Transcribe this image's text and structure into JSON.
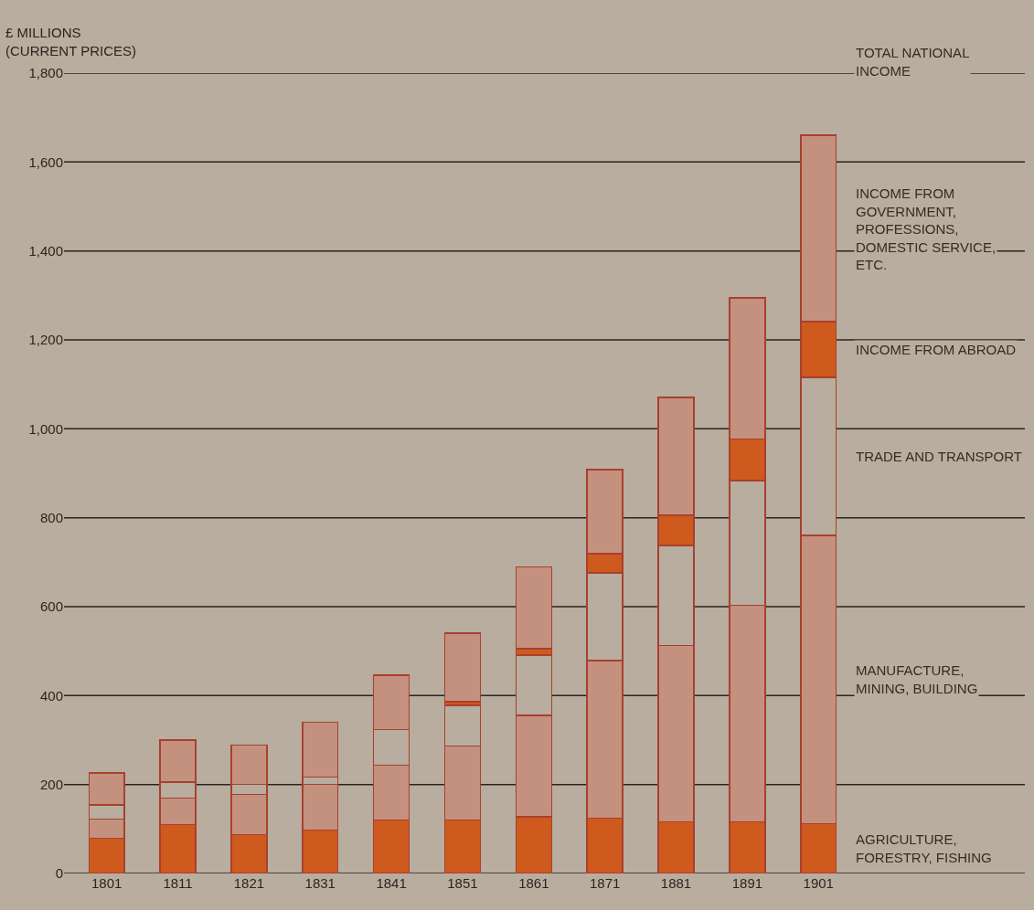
{
  "chart_data": {
    "type": "bar",
    "stacked": true,
    "ylabel": "£ MILLIONS (CURRENT PRICES)",
    "categories": [
      "1801",
      "1811",
      "1821",
      "1831",
      "1841",
      "1851",
      "1861",
      "1871",
      "1881",
      "1891",
      "1901"
    ],
    "series": [
      {
        "name": "AGRICULTURE, FORESTRY, FISHING",
        "color": "#cf5a1e",
        "values": [
          79,
          110,
          87,
          98,
          120,
          120,
          127,
          124,
          116,
          116,
          112
        ]
      },
      {
        "name": "MANUFACTURE, MINING, BUILDING",
        "color": "#c4917f",
        "values": [
          43,
          60,
          91,
          102,
          124,
          167,
          229,
          355,
          397,
          487,
          648
        ]
      },
      {
        "name": "TRADE AND TRANSPORT",
        "color": "#b9ad9f",
        "values": [
          32,
          36,
          22,
          17,
          80,
          91,
          135,
          197,
          225,
          281,
          356
        ]
      },
      {
        "name": "INCOME FROM ABROAD",
        "color": "#cf5a1e",
        "values": [
          0,
          0,
          0,
          0,
          0,
          8,
          14,
          43,
          67,
          93,
          125
        ]
      },
      {
        "name": "INCOME FROM GOVERNMENT, PROFESSIONS, DOMESTIC SERVICE, ETC.",
        "color": "#c4917f",
        "values": [
          72,
          94,
          89,
          123,
          122,
          154,
          184,
          189,
          266,
          318,
          419
        ]
      }
    ],
    "ylim": [
      0,
      1800
    ],
    "yticks": [
      0,
      {
        "value": 200,
        "label": "200"
      },
      {
        "value": 400,
        "label": "400"
      },
      {
        "value": 600,
        "label": "600"
      },
      {
        "value": 800,
        "label": "800"
      },
      {
        "value": 1000,
        "label": "1,000"
      },
      {
        "value": 1200,
        "label": "1,200"
      },
      {
        "value": 1400,
        "label": "1,400"
      },
      {
        "value": 1600,
        "label": "1,600"
      },
      {
        "value": 1800,
        "label": "1,800"
      }
    ],
    "grid": "y",
    "legend": false,
    "annotations": [
      "TOTAL NATIONAL INCOME"
    ]
  }
}
